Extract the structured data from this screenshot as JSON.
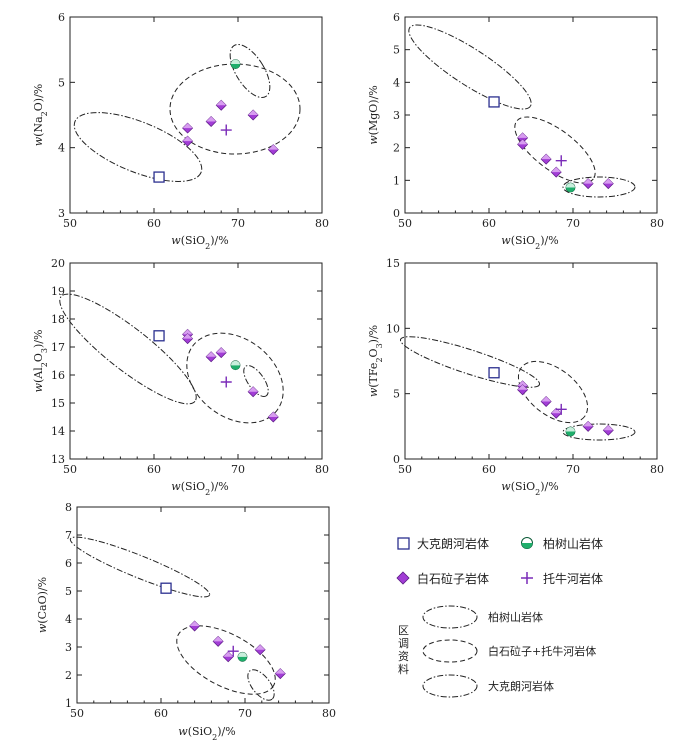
{
  "legend": {
    "items": [
      {
        "key": "dkl",
        "label": "大克朗河岩体"
      },
      {
        "key": "bss",
        "label": "柏树山岩体"
      },
      {
        "key": "bsl",
        "label": "白石砬子岩体"
      },
      {
        "key": "tnh",
        "label": "托牛河岩体"
      }
    ],
    "region_label": "区调资料",
    "fields": [
      {
        "key": "bss_field",
        "label": "柏树山岩体",
        "dash": "dashdot"
      },
      {
        "key": "bsl_field",
        "label": "白石砬子+托牛河岩体",
        "dash": "dash"
      },
      {
        "key": "dkl_field",
        "label": "大克朗河岩体",
        "dash": "dashdot"
      }
    ]
  },
  "colors": {
    "dkl": "#2b2f8f",
    "bss": "#1fae6b",
    "bsl": "#a23dd6",
    "tnh": "#7a2bb8",
    "axis": "#222222"
  },
  "chart_data": [
    {
      "id": "na2o",
      "type": "scatter",
      "xlabel": "w(SiO2)/%",
      "ylabel": "w(Na2O)/%",
      "xlim": [
        50,
        80
      ],
      "ylim": [
        3,
        6
      ],
      "xticks": [
        50,
        60,
        70,
        80
      ],
      "yticks": [
        3,
        4,
        5,
        6
      ],
      "series": [
        {
          "name": "大克朗河岩体",
          "marker": "square",
          "points": [
            [
              60.6,
              3.55
            ]
          ]
        },
        {
          "name": "柏树山岩体",
          "marker": "halfcircle",
          "points": [
            [
              69.7,
              5.28
            ]
          ]
        },
        {
          "name": "白石砬子岩体",
          "marker": "diamond",
          "points": [
            [
              64,
              4.3
            ],
            [
              64,
              4.1
            ],
            [
              66.8,
              4.4
            ],
            [
              68,
              4.65
            ],
            [
              71.8,
              4.5
            ],
            [
              74.2,
              3.97
            ]
          ]
        },
        {
          "name": "托牛河岩体",
          "marker": "plus",
          "points": [
            [
              68.6,
              4.27
            ]
          ]
        }
      ],
      "fields": [
        {
          "name": "大克朗河岩体",
          "dash": "dashdot",
          "cx": 58.3,
          "cy": 4.08,
          "rx": 8.0,
          "ry": 0.35,
          "angle_data": -14
        },
        {
          "name": "白石砬子+托牛河岩体",
          "dash": "dash",
          "cx": 69.0,
          "cy": 4.55,
          "rx": 6.5,
          "ry": 0.72,
          "angle_data": 0
        },
        {
          "name": "柏树山岩体",
          "dash": "dashdot",
          "cx": 70.8,
          "cy": 5.2,
          "rx": 2.2,
          "ry": 0.5,
          "angle_data": -40
        }
      ]
    },
    {
      "id": "mgo",
      "type": "scatter",
      "xlabel": "w(SiO2)/%",
      "ylabel": "w(MgO)/%",
      "xlim": [
        50,
        80
      ],
      "ylim": [
        0,
        6
      ],
      "xticks": [
        50,
        60,
        70,
        80
      ],
      "yticks": [
        0,
        1,
        2,
        3,
        4,
        5,
        6
      ],
      "series": [
        {
          "name": "大克朗河岩体",
          "marker": "square",
          "points": [
            [
              60.6,
              3.4
            ]
          ]
        },
        {
          "name": "柏树山岩体",
          "marker": "halfcircle",
          "points": [
            [
              69.7,
              0.78
            ]
          ]
        },
        {
          "name": "白石砬子岩体",
          "marker": "diamond",
          "points": [
            [
              64,
              2.3
            ],
            [
              64,
              2.1
            ],
            [
              66.8,
              1.65
            ],
            [
              68,
              1.25
            ],
            [
              71.8,
              0.9
            ],
            [
              74.2,
              0.9
            ]
          ]
        },
        {
          "name": "托牛河岩体",
          "marker": "plus",
          "points": [
            [
              68.6,
              1.6
            ]
          ]
        }
      ],
      "fields": [
        {
          "name": "大克朗河岩体",
          "dash": "dashdot"
        },
        {
          "name": "白石砬子+托牛河岩体",
          "dash": "dash"
        },
        {
          "name": "柏树山岩体",
          "dash": "dashdot"
        }
      ]
    },
    {
      "id": "al2o3",
      "type": "scatter",
      "xlabel": "w(SiO2)/%",
      "ylabel": "w(Al2O3)/%",
      "xlim": [
        50,
        80
      ],
      "ylim": [
        13,
        20
      ],
      "xticks": [
        50,
        60,
        70,
        80
      ],
      "yticks": [
        13,
        14,
        15,
        16,
        17,
        18,
        19,
        20
      ],
      "series": [
        {
          "name": "大克朗河岩体",
          "marker": "square",
          "points": [
            [
              60.6,
              17.4
            ]
          ]
        },
        {
          "name": "柏树山岩体",
          "marker": "halfcircle",
          "points": [
            [
              69.7,
              16.35
            ]
          ]
        },
        {
          "name": "白石砬子岩体",
          "marker": "diamond",
          "points": [
            [
              64,
              17.45
            ],
            [
              64,
              17.3
            ],
            [
              66.8,
              16.65
            ],
            [
              68,
              16.8
            ],
            [
              71.8,
              15.4
            ],
            [
              74.2,
              14.5
            ]
          ]
        },
        {
          "name": "托牛河岩体",
          "marker": "plus",
          "points": [
            [
              68.6,
              15.75
            ]
          ]
        }
      ],
      "fields": [
        {
          "name": "大克朗河岩体",
          "dash": "dashdot"
        },
        {
          "name": "白石砬子+托牛河岩体",
          "dash": "dash"
        },
        {
          "name": "柏树山岩体",
          "dash": "dashdot"
        }
      ]
    },
    {
      "id": "tfe2o3",
      "type": "scatter",
      "xlabel": "w(SiO2)/%",
      "ylabel": "w(TFe2O3)/%",
      "xlim": [
        50,
        80
      ],
      "ylim": [
        0,
        15
      ],
      "xticks": [
        50,
        60,
        70,
        80
      ],
      "yticks": [
        0,
        5,
        10,
        15
      ],
      "series": [
        {
          "name": "大克朗河岩体",
          "marker": "square",
          "points": [
            [
              60.6,
              6.6
            ]
          ]
        },
        {
          "name": "柏树山岩体",
          "marker": "halfcircle",
          "points": [
            [
              69.7,
              2.1
            ]
          ]
        },
        {
          "name": "白石砬子岩体",
          "marker": "diamond",
          "points": [
            [
              64,
              5.6
            ],
            [
              64,
              5.3
            ],
            [
              66.8,
              4.4
            ],
            [
              68,
              3.5
            ],
            [
              71.8,
              2.5
            ],
            [
              74.2,
              2.2
            ]
          ]
        },
        {
          "name": "托牛河岩体",
          "marker": "plus",
          "points": [
            [
              68.6,
              3.8
            ]
          ]
        }
      ],
      "fields": [
        {
          "name": "大克朗河岩体",
          "dash": "dashdot"
        },
        {
          "name": "白石砬子+托牛河岩体",
          "dash": "dash"
        },
        {
          "name": "柏树山岩体",
          "dash": "dashdot"
        }
      ]
    },
    {
      "id": "cao",
      "type": "scatter",
      "xlabel": "w(SiO2)/%",
      "ylabel": "w(CaO)/%",
      "xlim": [
        50,
        80
      ],
      "ylim": [
        1,
        8
      ],
      "xticks": [
        50,
        60,
        70,
        80
      ],
      "yticks": [
        1,
        2,
        3,
        4,
        5,
        6,
        7,
        8
      ],
      "series": [
        {
          "name": "大克朗河岩体",
          "marker": "square",
          "points": [
            [
              60.6,
              5.1
            ]
          ]
        },
        {
          "name": "柏树山岩体",
          "marker": "halfcircle",
          "points": [
            [
              69.7,
              2.65
            ]
          ]
        },
        {
          "name": "白石砬子岩体",
          "marker": "diamond",
          "points": [
            [
              64,
              3.75
            ],
            [
              66.8,
              3.2
            ],
            [
              68,
              2.65
            ],
            [
              71.8,
              2.9
            ],
            [
              74.2,
              2.05
            ]
          ]
        },
        {
          "name": "托牛河岩体",
          "marker": "plus",
          "points": [
            [
              68.6,
              2.85
            ]
          ]
        }
      ],
      "fields": [
        {
          "name": "大克朗河岩体",
          "dash": "dashdot"
        },
        {
          "name": "白石砬子+托牛河岩体",
          "dash": "dash"
        },
        {
          "name": "柏树山岩体",
          "dash": "dashdot"
        }
      ]
    }
  ]
}
